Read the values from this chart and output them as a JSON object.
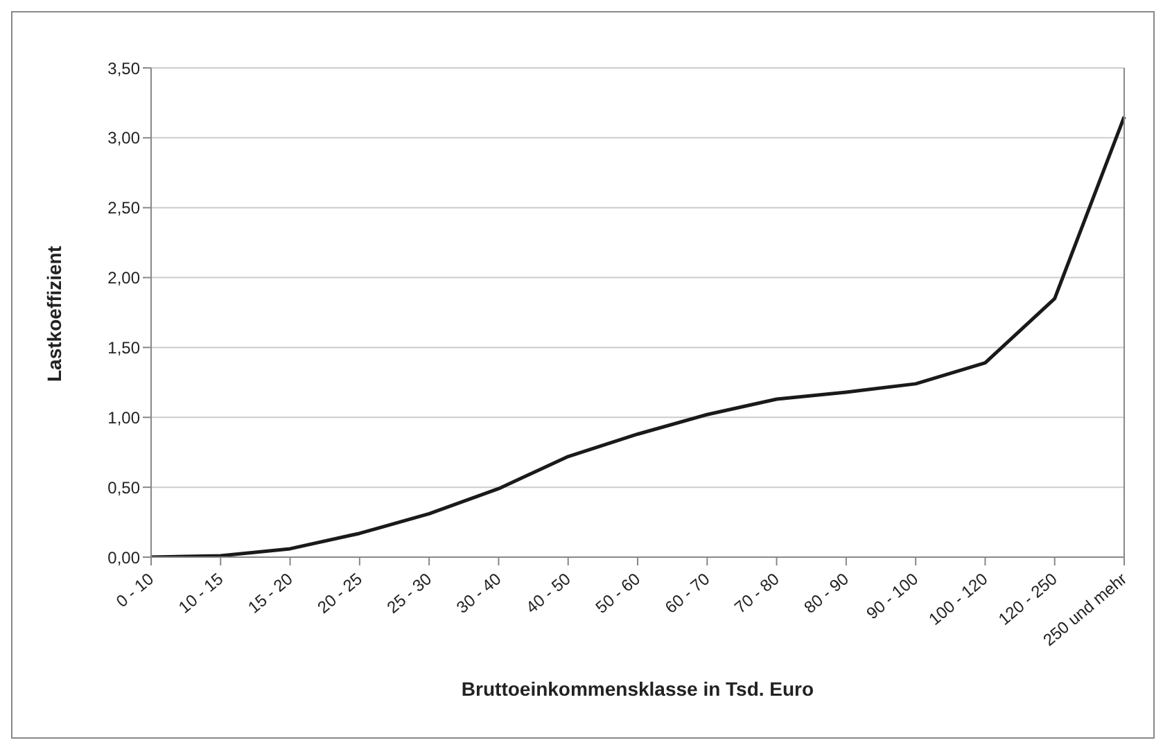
{
  "chart_data": {
    "type": "line",
    "xlabel": "Bruttoeinkommensklasse in Tsd. Euro",
    "ylabel": "Lastkoeffizient",
    "categories": [
      "0 - 10",
      "10 - 15",
      "15 - 20",
      "20 - 25",
      "25 - 30",
      "30 - 40",
      "40 - 50",
      "50 - 60",
      "60 - 70",
      "70 - 80",
      "80 - 90",
      "90 - 100",
      "100 - 120",
      "120 - 250",
      "250 und mehr"
    ],
    "series": [
      {
        "color": "#1a1a1a",
        "values": [
          0.0,
          0.01,
          0.06,
          0.17,
          0.31,
          0.49,
          0.72,
          0.88,
          1.02,
          1.13,
          1.18,
          1.24,
          1.39,
          1.85,
          3.15
        ]
      }
    ],
    "ylim": [
      0,
      3.5
    ],
    "yticks": [
      {
        "value": 0,
        "label": "0,00"
      },
      {
        "value": 0.5,
        "label": "0,50"
      },
      {
        "value": 1,
        "label": "1,00"
      },
      {
        "value": 1.5,
        "label": "1,50"
      },
      {
        "value": 2,
        "label": "2,00"
      },
      {
        "value": 2.5,
        "label": "2,50"
      },
      {
        "value": 3,
        "label": "3,00"
      },
      {
        "value": 3.5,
        "label": "3,50"
      }
    ],
    "grid": "y",
    "legend": false,
    "marker": "none",
    "line_style": "solid"
  }
}
